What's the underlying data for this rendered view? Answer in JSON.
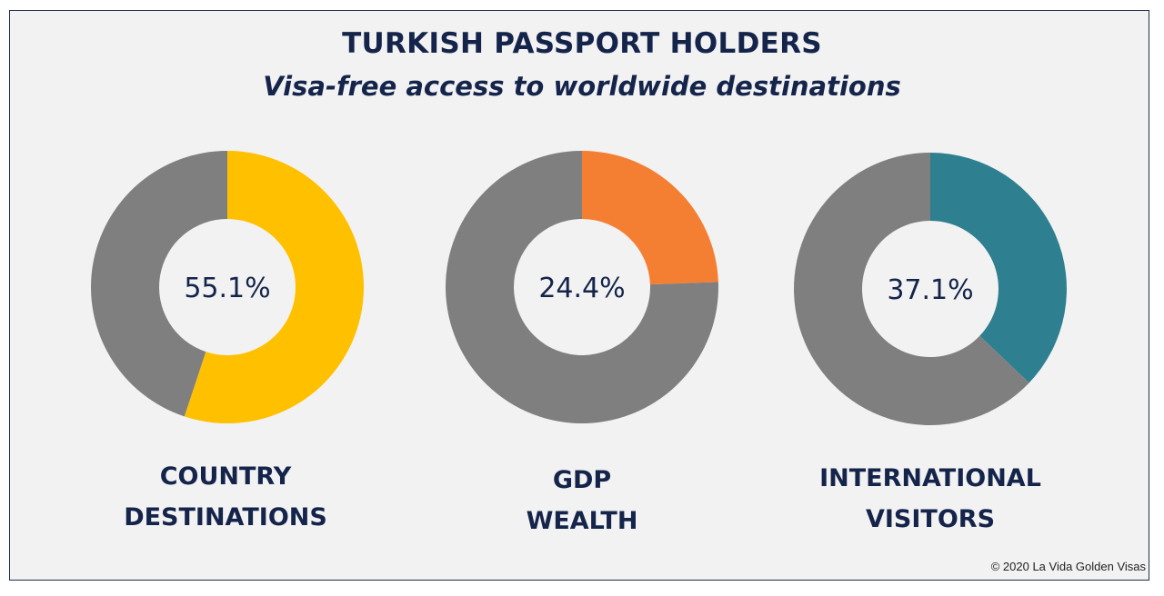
{
  "title": "TURKISH PASSPORT HOLDERS",
  "subtitle": "Visa-free access to worldwide destinations",
  "copyright": "© 2020 La Vida Golden Visas",
  "colors": {
    "remainder": "#7f7f7f",
    "text": "#14244a",
    "background": "#f2f2f2"
  },
  "chart_data": [
    {
      "type": "pie",
      "variant": "donut",
      "value": 55.1,
      "label_text": "55.1%",
      "category_line1": "COUNTRY",
      "category_line2": "DESTINATIONS",
      "color": "#ffc000"
    },
    {
      "type": "pie",
      "variant": "donut",
      "value": 24.4,
      "label_text": "24.4%",
      "category_line1": "GDP",
      "category_line2": "WEALTH",
      "color": "#f47f33"
    },
    {
      "type": "pie",
      "variant": "donut",
      "value": 37.1,
      "label_text": "37.1%",
      "category_line1": "INTERNATIONAL",
      "category_line2": "VISITORS",
      "color": "#2e7f8f"
    }
  ]
}
